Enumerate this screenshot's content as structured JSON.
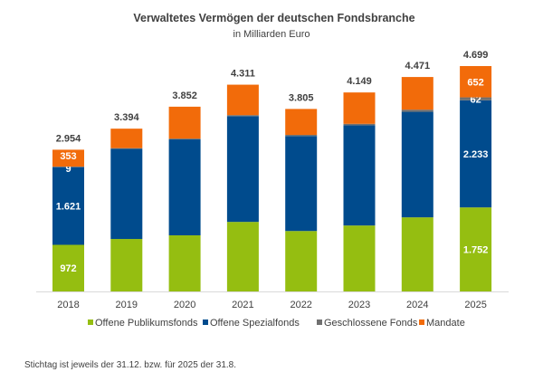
{
  "chart_data": {
    "type": "bar",
    "stacked": true,
    "title": "Verwaltetes Vermögen der deutschen Fondsbranche",
    "subtitle": "in Milliarden Euro",
    "xlabel": "",
    "ylabel": "",
    "ylim": [
      0,
      4800
    ],
    "grid": false,
    "legend_position": "bottom",
    "categories": [
      "2018",
      "2019",
      "2020",
      "2021",
      "2022",
      "2023",
      "2024",
      "2025"
    ],
    "series": [
      {
        "name": "Offene Publikumsfonds",
        "color": "#95BE11",
        "values": [
          972,
          1094,
          1170,
          1450,
          1260,
          1375,
          1545,
          1752
        ],
        "labels": [
          "972",
          null,
          null,
          null,
          null,
          null,
          null,
          "1.752"
        ]
      },
      {
        "name": "Offene Spezialfonds",
        "color": "#004B8D",
        "values": [
          1621,
          1880,
          2000,
          2205,
          1980,
          2090,
          2200,
          2233
        ],
        "labels": [
          "1.621",
          null,
          null,
          null,
          null,
          null,
          null,
          "2.233"
        ]
      },
      {
        "name": "Geschlossene Fonds",
        "color": "#707070",
        "values": [
          9,
          14,
          17,
          22,
          25,
          30,
          45,
          62
        ],
        "labels": [
          "9",
          null,
          null,
          null,
          null,
          null,
          null,
          "62"
        ]
      },
      {
        "name": "Mandate",
        "color": "#F26B0A",
        "values": [
          353,
          406,
          665,
          634,
          540,
          654,
          681,
          652
        ],
        "labels": [
          "353",
          null,
          null,
          null,
          null,
          null,
          null,
          "652"
        ]
      }
    ],
    "totals": [
      "2.954",
      "3.394",
      "3.852",
      "4.311",
      "3.805",
      "4.149",
      "4.471",
      "4.699"
    ]
  },
  "footnote": "Stichtag ist jeweils der 31.12. bzw. für 2025 der 31.8."
}
